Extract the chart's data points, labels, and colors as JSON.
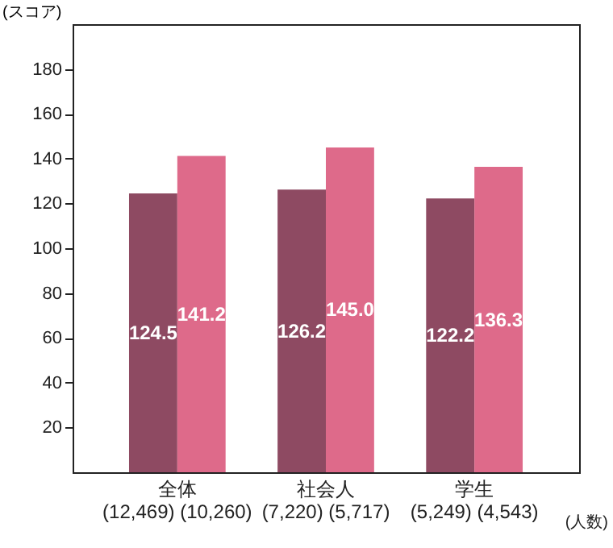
{
  "chart_data": {
    "type": "bar",
    "ylabel": "(スコア)",
    "categories": [
      "全体\n(12,469) (10,260)",
      "社会人\n(7,220) (5,717)",
      "学生\n(5,249) (4,543)"
    ],
    "series": [
      {
        "color": "#8e4a62",
        "values": [
          124.5,
          126.2,
          122.2
        ]
      },
      {
        "color": "#de6a8a",
        "values": [
          141.2,
          145.0,
          136.3
        ]
      }
    ],
    "value_labels": [
      [
        "124.5",
        "126.2",
        "122.2"
      ],
      [
        "141.2",
        "145.0",
        "136.3"
      ]
    ],
    "ylim": [
      0,
      200
    ],
    "yticks": [
      20,
      40,
      60,
      80,
      100,
      120,
      140,
      160,
      180
    ],
    "annotations": [
      "(人数)"
    ],
    "grid": false
  }
}
